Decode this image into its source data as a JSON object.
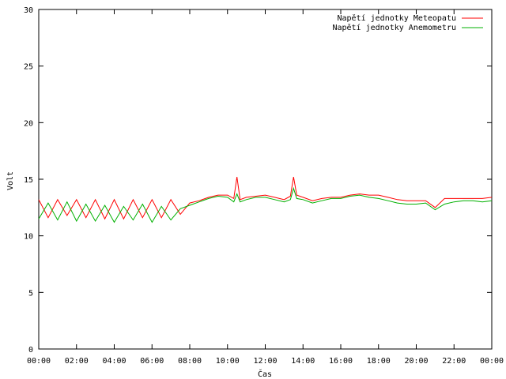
{
  "chart_data": {
    "type": "line",
    "xlabel": "Čas",
    "ylabel": "Volt",
    "ylim": [
      0,
      30
    ],
    "xlim": [
      "00:00",
      "00:00 (+1 day)"
    ],
    "x_tick_labels": [
      "00:00",
      "02:00",
      "04:00",
      "06:00",
      "08:00",
      "10:00",
      "12:00",
      "14:00",
      "16:00",
      "18:00",
      "20:00",
      "22:00",
      "00:00"
    ],
    "y_tick_labels": [
      "0",
      "5",
      "10",
      "15",
      "20",
      "25",
      "30"
    ],
    "y_ticks": [
      0,
      5,
      10,
      15,
      20,
      25,
      30
    ],
    "grid": false,
    "legend_position": "top-right",
    "x": [
      "00:00",
      "00:30",
      "01:00",
      "01:30",
      "02:00",
      "02:30",
      "03:00",
      "03:30",
      "04:00",
      "04:30",
      "05:00",
      "05:30",
      "06:00",
      "06:30",
      "07:00",
      "07:30",
      "08:00",
      "08:30",
      "09:00",
      "09:30",
      "10:00",
      "10:20",
      "10:30",
      "10:40",
      "11:00",
      "11:30",
      "12:00",
      "12:30",
      "13:00",
      "13:20",
      "13:30",
      "13:40",
      "14:00",
      "14:30",
      "15:00",
      "15:30",
      "16:00",
      "16:30",
      "17:00",
      "17:30",
      "18:00",
      "18:30",
      "19:00",
      "19:30",
      "20:00",
      "20:30",
      "21:00",
      "21:30",
      "22:00",
      "22:30",
      "23:00",
      "23:30",
      "24:00"
    ],
    "series": [
      {
        "name": "Napětí jednotky Meteopatu",
        "color": "#ff0000",
        "values": [
          13.2,
          11.6,
          13.2,
          11.8,
          13.2,
          11.6,
          13.2,
          11.5,
          13.2,
          11.5,
          13.2,
          11.6,
          13.2,
          11.6,
          13.2,
          11.9,
          12.9,
          13.1,
          13.4,
          13.6,
          13.6,
          13.3,
          15.2,
          13.2,
          13.4,
          13.5,
          13.6,
          13.4,
          13.2,
          13.5,
          15.2,
          13.6,
          13.4,
          13.1,
          13.3,
          13.4,
          13.4,
          13.6,
          13.7,
          13.6,
          13.6,
          13.4,
          13.2,
          13.1,
          13.1,
          13.1,
          12.5,
          13.3,
          13.3,
          13.3,
          13.3,
          13.3,
          13.4
        ]
      },
      {
        "name": "Napětí jednotky Anemometru",
        "color": "#00b000",
        "values": [
          11.5,
          12.9,
          11.4,
          13.0,
          11.3,
          12.8,
          11.3,
          12.7,
          11.2,
          12.6,
          11.4,
          12.8,
          11.2,
          12.6,
          11.4,
          12.4,
          12.7,
          13.0,
          13.3,
          13.5,
          13.4,
          13.0,
          13.7,
          13.0,
          13.2,
          13.4,
          13.4,
          13.2,
          13.0,
          13.2,
          14.2,
          13.3,
          13.2,
          12.9,
          13.1,
          13.3,
          13.3,
          13.5,
          13.6,
          13.4,
          13.3,
          13.1,
          12.9,
          12.8,
          12.8,
          12.9,
          12.3,
          12.8,
          13.0,
          13.1,
          13.1,
          13.0,
          13.1
        ]
      }
    ]
  }
}
